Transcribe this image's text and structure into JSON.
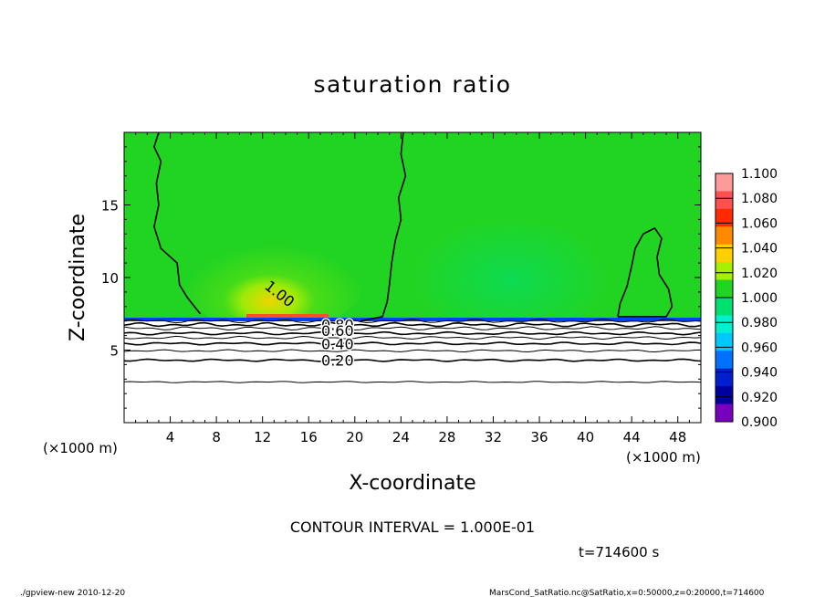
{
  "chart_data": {
    "type": "heatmap",
    "title": "saturation ratio",
    "xlabel": "X-coordinate",
    "ylabel": "Z-coordinate",
    "x_unit_left": "(×1000 m)",
    "x_unit_right": "(×1000 m)",
    "xlim": [
      0,
      50
    ],
    "ylim": [
      0,
      20
    ],
    "x_ticks": [
      4,
      8,
      12,
      16,
      20,
      24,
      28,
      32,
      36,
      40,
      44,
      48
    ],
    "y_ticks": [
      5,
      10,
      15
    ],
    "colorbar": {
      "levels": [
        "1.100",
        "1.080",
        "1.060",
        "1.040",
        "1.020",
        "1.000",
        "0.980",
        "0.960",
        "0.940",
        "0.920",
        "0.900"
      ],
      "colors": [
        "#ff9a9a",
        "#ff5050",
        "#ff2a00",
        "#ff8a00",
        "#ffd000",
        "#a8f000",
        "#22d422",
        "#00e070",
        "#00f0d0",
        "#00c8ff",
        "#0070ff",
        "#0020d0",
        "#0000a0",
        "#7a00c0"
      ]
    },
    "contour_labels": [
      {
        "text": "1.00",
        "x": 13.5,
        "z": 8.9
      },
      {
        "text": "0.80",
        "x": 18.5,
        "z": 6.75
      },
      {
        "text": "0.60",
        "x": 18.5,
        "z": 6.35
      },
      {
        "text": "0.40",
        "x": 18.5,
        "z": 5.45
      },
      {
        "text": "0.20",
        "x": 18.5,
        "z": 4.3
      }
    ],
    "contour_interval_text": "CONTOUR INTERVAL = 1.000E-01",
    "time_text": "t=714600 s"
  },
  "footer": {
    "left": "./gpview-new  2010-12-20",
    "right": "MarsCond_SatRatio.nc@SatRatio,x=0:50000,z=0:20000,t=714600"
  },
  "colors": {
    "field_green": "#22d422",
    "axis": "#000000",
    "background": "#ffffff"
  }
}
